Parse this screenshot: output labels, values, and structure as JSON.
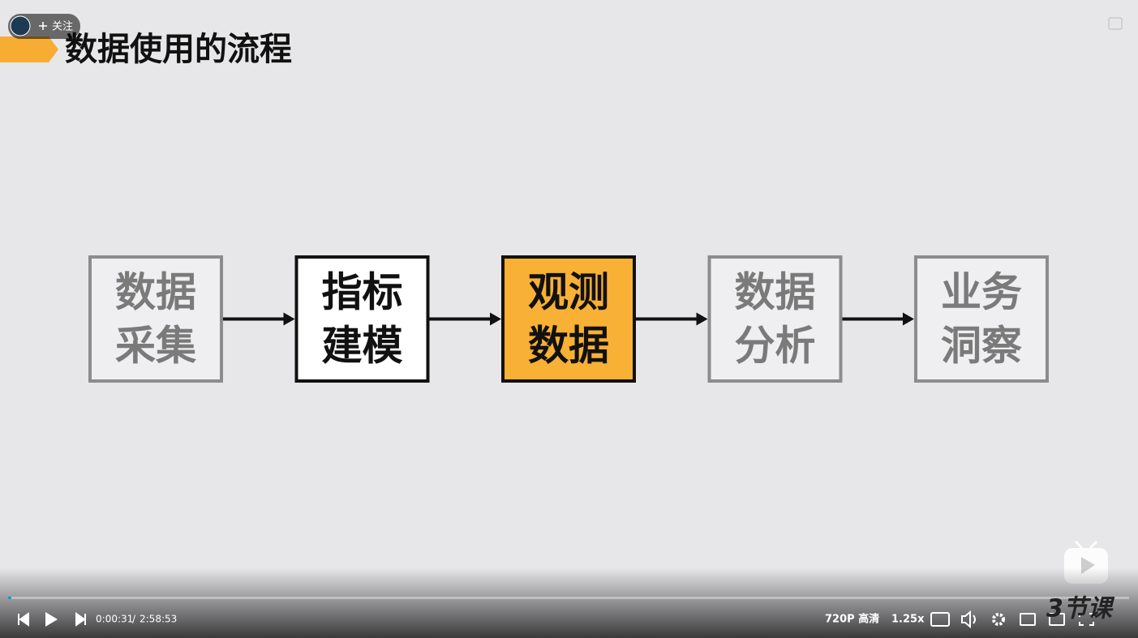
{
  "follow_button": {
    "label": "关注"
  },
  "slide": {
    "title": "数据使用的流程",
    "nodes": [
      {
        "lines": [
          "数据",
          "采集"
        ],
        "fill": "#efeff1",
        "border": "#8c8c8c",
        "text_color": "#7a7a7a"
      },
      {
        "lines": [
          "指标",
          "建模"
        ],
        "fill": "#ffffff",
        "border": "#111111",
        "text_color": "#111111"
      },
      {
        "lines": [
          "观测",
          "数据"
        ],
        "fill": "#f8b035",
        "border": "#111111",
        "text_color": "#111111"
      },
      {
        "lines": [
          "数据",
          "分析"
        ],
        "fill": "#efeff1",
        "border": "#8c8c8c",
        "text_color": "#7a7a7a"
      },
      {
        "lines": [
          "业务",
          "洞察"
        ],
        "fill": "#efeff1",
        "border": "#8c8c8c",
        "text_color": "#7a7a7a"
      }
    ],
    "watermark": "3节课"
  },
  "controls": {
    "current_time": "0:00:31",
    "separator": "/",
    "duration": "2:58:53",
    "quality": "720P 高清",
    "speed": "1.25x"
  }
}
